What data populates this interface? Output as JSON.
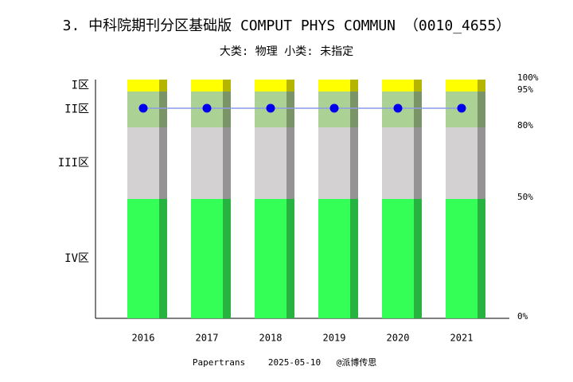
{
  "chart_data": {
    "type": "bar",
    "stacked": true,
    "title": "3. 中科院期刊分区基础版 COMPUT PHYS COMMUN （0010_4655）",
    "subtitle": "大类: 物理 小类: 未指定",
    "categories": [
      "2016",
      "2017",
      "2018",
      "2019",
      "2020",
      "2021"
    ],
    "series": [
      {
        "name": "IV区",
        "color": "#33ff57",
        "shade": "#26b33f",
        "values": [
          50,
          50,
          50,
          50,
          50,
          50
        ]
      },
      {
        "name": "III区",
        "color": "#d3d1d2",
        "shade": "#959394",
        "values": [
          30,
          30,
          30,
          30,
          30,
          30
        ]
      },
      {
        "name": "II区",
        "color": "#acd194",
        "shade": "#7a9468",
        "values": [
          15,
          15,
          15,
          15,
          15,
          15
        ]
      },
      {
        "name": "I区",
        "color": "#ffff00",
        "shade": "#b5b500",
        "values": [
          5,
          5,
          5,
          5,
          5,
          5
        ]
      }
    ],
    "overlay": {
      "type": "line",
      "color": "#0000ee",
      "line_color": "#8c9be6",
      "values": [
        88,
        88,
        88,
        88,
        88,
        88
      ]
    },
    "ylim": [
      0,
      100
    ],
    "y2ticks": [
      {
        "value": 100,
        "label": "100%"
      },
      {
        "value": 95,
        "label": "95%"
      },
      {
        "value": 80,
        "label": "80%"
      },
      {
        "value": 50,
        "label": "50%"
      },
      {
        "value": 0,
        "label": "0%"
      }
    ],
    "footer": [
      "Papertrans",
      "2025-05-10",
      "@派博传思"
    ]
  }
}
